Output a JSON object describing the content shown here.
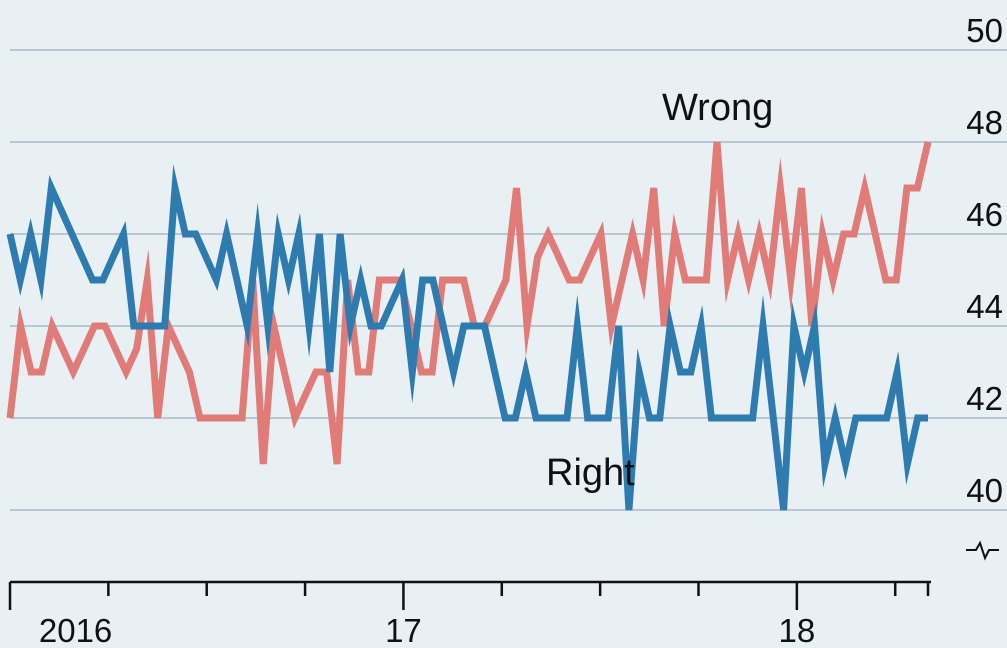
{
  "chart_data": {
    "type": "line",
    "x_start": "2016-01",
    "x_end": "2018-05",
    "ylim": [
      40,
      50
    ],
    "y_ticks": [
      "40",
      "42",
      "44",
      "46",
      "48",
      "50"
    ],
    "y_axis_break": true,
    "grid": true,
    "x_tick_labels": [
      {
        "label": "2016",
        "at": "2016-03"
      },
      {
        "label": "17",
        "at": "2017-01"
      },
      {
        "label": "18",
        "at": "2018-01"
      }
    ],
    "series": [
      {
        "name": "Wrong",
        "color": "#e07b78",
        "values": [
          42,
          44,
          43,
          43,
          44,
          43.5,
          43,
          43.5,
          44,
          44,
          43.5,
          43,
          43.5,
          45,
          42,
          44,
          43.5,
          43,
          42,
          42,
          42,
          42,
          42,
          45,
          41,
          44,
          43,
          42,
          42.5,
          43,
          43,
          41,
          45,
          43,
          43,
          45,
          45,
          45,
          44,
          43,
          43,
          45,
          45,
          45,
          44,
          44,
          44.5,
          45,
          47,
          44,
          45.5,
          46,
          45.5,
          45,
          45,
          45.5,
          46,
          44,
          45,
          46,
          45,
          47,
          44,
          46,
          45,
          45,
          45,
          48,
          45,
          46,
          45,
          46,
          45,
          47,
          45,
          47,
          44,
          46,
          45,
          46,
          46,
          47,
          46,
          45,
          45,
          47,
          47,
          48
        ]
      },
      {
        "name": "Right",
        "color": "#2e7bb0",
        "values": [
          46,
          45,
          46,
          45,
          47,
          46.5,
          46,
          45.5,
          45,
          45,
          45.5,
          46,
          44,
          44,
          44,
          44,
          47,
          46,
          46,
          45.5,
          45,
          46,
          45,
          44,
          46,
          44,
          46,
          45,
          46,
          44,
          46,
          43,
          46,
          44,
          45,
          44,
          44,
          44.5,
          45,
          43,
          45,
          45,
          44,
          43,
          44,
          44,
          44,
          43,
          42,
          42,
          43,
          42,
          42,
          42,
          42,
          44,
          42,
          42,
          42,
          44,
          40,
          43,
          42,
          42,
          44,
          43,
          43,
          44,
          42,
          42,
          42,
          42,
          42,
          44,
          42,
          40,
          44,
          43,
          44,
          41,
          42,
          41,
          42,
          42,
          42,
          42,
          43,
          41,
          42,
          42
        ]
      }
    ]
  }
}
